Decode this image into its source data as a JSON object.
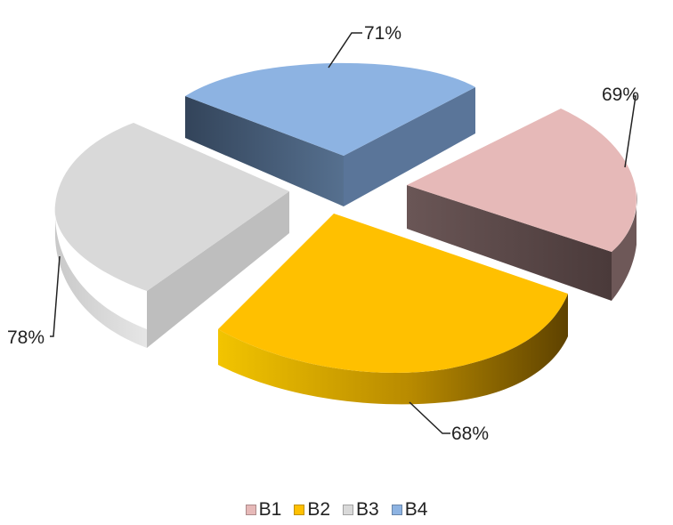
{
  "chart_data": {
    "type": "pie",
    "style": "3d-exploded",
    "categories": [
      "B1",
      "B2",
      "B3",
      "B4"
    ],
    "values": [
      69,
      68,
      78,
      71
    ],
    "data_labels": [
      "69%",
      "68%",
      "78%",
      "71%"
    ],
    "colors": [
      "#e6b9b8",
      "#ffc000",
      "#d9d9d9",
      "#8db3e2"
    ],
    "side_colors": [
      "#5a4747",
      "#8a6400",
      "#b7b7b7",
      "#3a4e66"
    ],
    "legend_position": "bottom",
    "title": ""
  },
  "legend": {
    "items": [
      {
        "label": "B1",
        "color": "#e6b9b8"
      },
      {
        "label": "B2",
        "color": "#ffc000"
      },
      {
        "label": "B3",
        "color": "#d9d9d9"
      },
      {
        "label": "B4",
        "color": "#8db3e2"
      }
    ]
  }
}
